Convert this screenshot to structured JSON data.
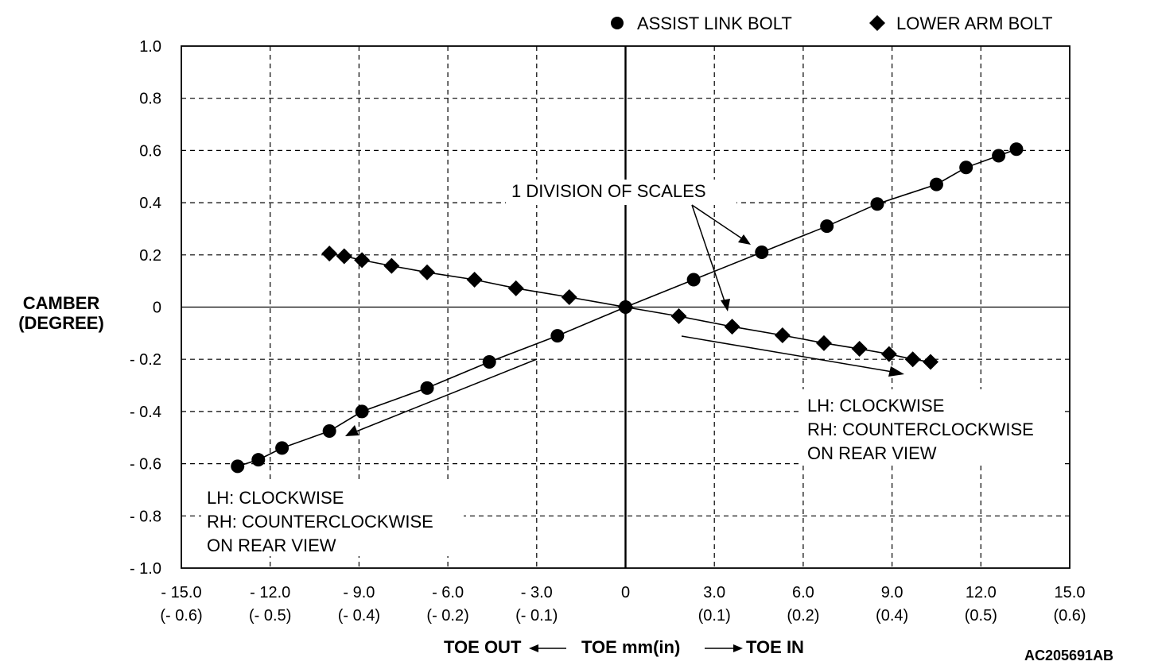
{
  "chart_data": {
    "type": "scatter",
    "xlabel": "TOE mm(in)",
    "toe_out_label": "TOE OUT",
    "toe_in_label": "TOE IN",
    "ylabel_line1": "CAMBER",
    "ylabel_line2": "(DEGREE)",
    "xlim": [
      -15.0,
      15.0
    ],
    "ylim": [
      -1.0,
      1.0
    ],
    "grid": true,
    "legend_position": "top-right",
    "x_ticks": [
      {
        "v": -15,
        "mm": "- 15.0",
        "inch": "(- 0.6)"
      },
      {
        "v": -12,
        "mm": "- 12.0",
        "inch": "(- 0.5)"
      },
      {
        "v": -9,
        "mm": "- 9.0",
        "inch": "(- 0.4)"
      },
      {
        "v": -6,
        "mm": "- 6.0",
        "inch": "(- 0.2)"
      },
      {
        "v": -3,
        "mm": "- 3.0",
        "inch": "(- 0.1)"
      },
      {
        "v": 0,
        "mm": "0",
        "inch": ""
      },
      {
        "v": 3,
        "mm": "3.0",
        "inch": "(0.1)"
      },
      {
        "v": 6,
        "mm": "6.0",
        "inch": "(0.2)"
      },
      {
        "v": 9,
        "mm": "9.0",
        "inch": "(0.4)"
      },
      {
        "v": 12,
        "mm": "12.0",
        "inch": "(0.5)"
      },
      {
        "v": 15,
        "mm": "15.0",
        "inch": "(0.6)"
      }
    ],
    "y_ticks": [
      {
        "v": 1.0,
        "label": "1.0"
      },
      {
        "v": 0.8,
        "label": "0.8"
      },
      {
        "v": 0.6,
        "label": "0.6"
      },
      {
        "v": 0.4,
        "label": "0.4"
      },
      {
        "v": 0.2,
        "label": "0.2"
      },
      {
        "v": 0.0,
        "label": "0"
      },
      {
        "v": -0.2,
        "label": "- 0.2"
      },
      {
        "v": -0.4,
        "label": "- 0.4"
      },
      {
        "v": -0.6,
        "label": "- 0.6"
      },
      {
        "v": -0.8,
        "label": "- 0.8"
      },
      {
        "v": -1.0,
        "label": "- 1.0"
      }
    ],
    "series": [
      {
        "name": "ASSIST LINK BOLT",
        "marker": "circle",
        "points": [
          [
            -13.1,
            -0.61
          ],
          [
            -12.4,
            -0.585
          ],
          [
            -11.6,
            -0.54
          ],
          [
            -10.0,
            -0.475
          ],
          [
            -8.9,
            -0.4
          ],
          [
            -6.7,
            -0.31
          ],
          [
            -4.6,
            -0.21
          ],
          [
            -2.3,
            -0.11
          ],
          [
            0.0,
            0.0
          ],
          [
            2.3,
            0.105
          ],
          [
            4.6,
            0.21
          ],
          [
            6.8,
            0.31
          ],
          [
            8.5,
            0.395
          ],
          [
            10.5,
            0.47
          ],
          [
            11.5,
            0.535
          ],
          [
            12.6,
            0.58
          ],
          [
            13.2,
            0.605
          ]
        ]
      },
      {
        "name": "LOWER ARM BOLT",
        "marker": "diamond",
        "points": [
          [
            -10.0,
            0.205
          ],
          [
            -9.5,
            0.195
          ],
          [
            -8.9,
            0.18
          ],
          [
            -7.9,
            0.158
          ],
          [
            -6.7,
            0.133
          ],
          [
            -5.1,
            0.105
          ],
          [
            -3.7,
            0.072
          ],
          [
            -1.9,
            0.038
          ],
          [
            0.0,
            0.0
          ],
          [
            1.8,
            -0.035
          ],
          [
            3.6,
            -0.075
          ],
          [
            5.3,
            -0.108
          ],
          [
            6.7,
            -0.138
          ],
          [
            7.9,
            -0.16
          ],
          [
            8.9,
            -0.18
          ],
          [
            9.7,
            -0.2
          ],
          [
            10.3,
            -0.21
          ]
        ]
      }
    ],
    "annotations": {
      "division": "1 DIVISION OF SCALES",
      "right_note": [
        "LH: CLOCKWISE",
        "RH: COUNTERCLOCKWISE",
        "ON REAR VIEW"
      ],
      "left_note": [
        "LH: CLOCKWISE",
        "RH: COUNTERCLOCKWISE",
        "ON REAR VIEW"
      ]
    },
    "figure_id": "AC205691AB"
  }
}
